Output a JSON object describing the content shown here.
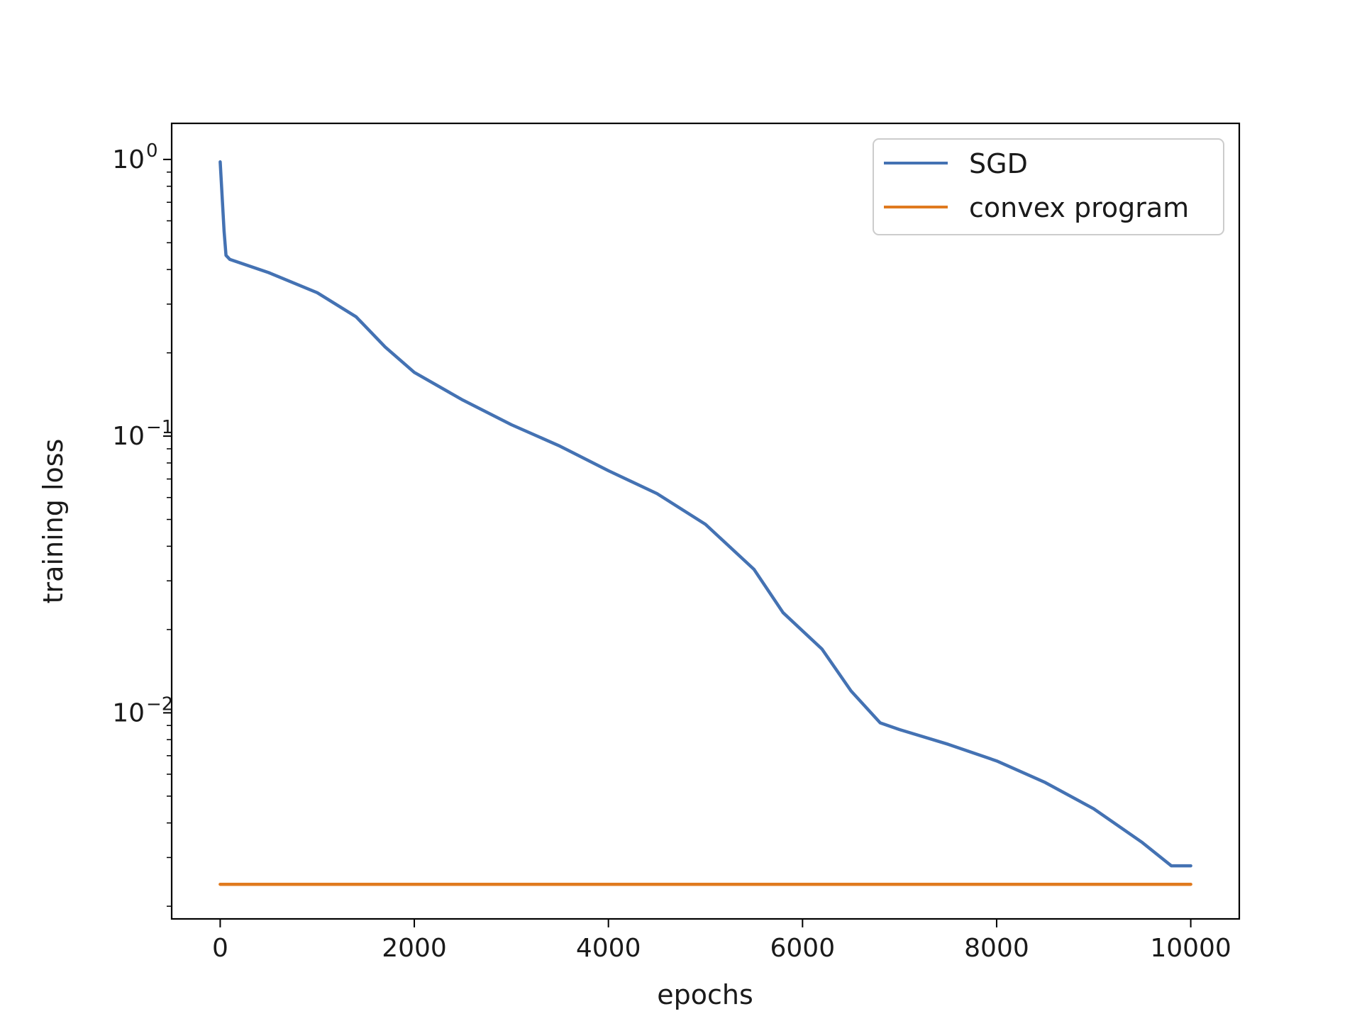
{
  "chart_data": {
    "type": "line",
    "xlabel": "epochs",
    "ylabel": "training loss",
    "yscale": "log",
    "xlim": [
      -500,
      10500
    ],
    "ylim": [
      0.0018,
      1.35
    ],
    "grid": false,
    "legend_position": "top-right",
    "x_ticks": [
      0,
      2000,
      4000,
      6000,
      8000,
      10000
    ],
    "x_tick_labels": [
      "0",
      "2000",
      "4000",
      "6000",
      "8000",
      "10000"
    ],
    "y_ticks": [
      {
        "value": 1,
        "base": "10",
        "exp": "0"
      },
      {
        "value": 0.1,
        "base": "10",
        "exp": "−1"
      },
      {
        "value": 0.01,
        "base": "10",
        "exp": "−2"
      }
    ],
    "series": [
      {
        "name": "SGD",
        "color": "#4472b3",
        "x": [
          0,
          40,
          60,
          100,
          500,
          1000,
          1400,
          1700,
          2000,
          2500,
          3000,
          3500,
          4000,
          4500,
          5000,
          5500,
          5800,
          6200,
          6500,
          6800,
          7000,
          7500,
          8000,
          8500,
          9000,
          9500,
          9800,
          10000
        ],
        "y": [
          0.98,
          0.55,
          0.45,
          0.435,
          0.39,
          0.33,
          0.27,
          0.21,
          0.17,
          0.135,
          0.11,
          0.092,
          0.075,
          0.062,
          0.048,
          0.033,
          0.023,
          0.017,
          0.012,
          0.0092,
          0.0087,
          0.0077,
          0.0067,
          0.0056,
          0.0045,
          0.0034,
          0.0028,
          0.0028
        ]
      },
      {
        "name": "convex program",
        "color": "#e07a1f",
        "x": [
          0,
          10000
        ],
        "y": [
          0.0024,
          0.0024
        ]
      }
    ]
  }
}
